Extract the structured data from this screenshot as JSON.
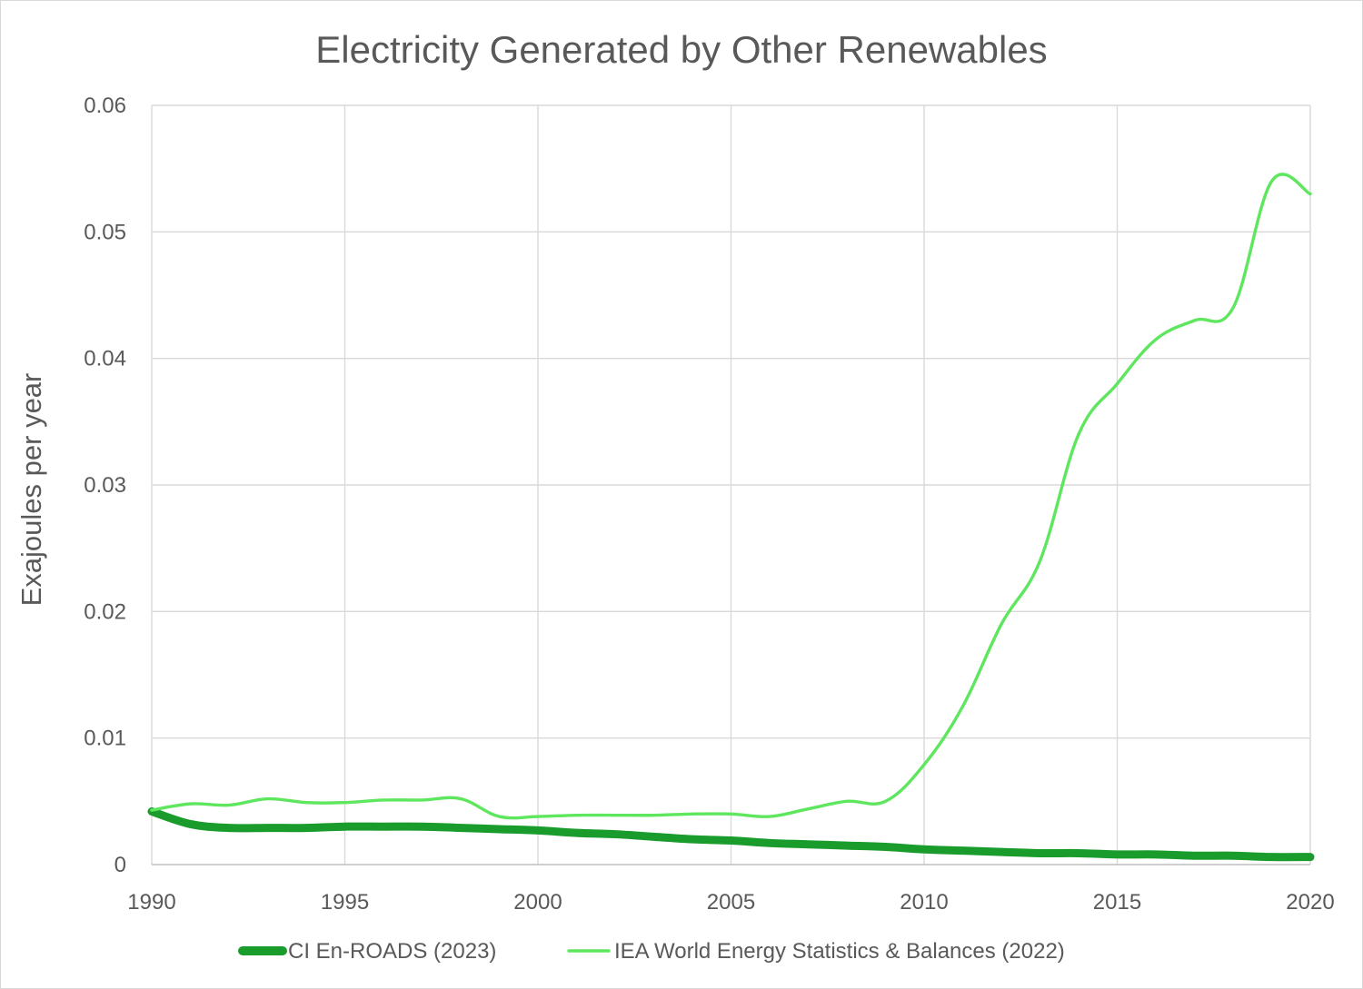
{
  "chart_data": {
    "type": "line",
    "title": "Electricity Generated by Other Renewables",
    "xlabel": "",
    "ylabel": "Exajoules per year",
    "xlim": [
      1990,
      2020
    ],
    "ylim": [
      0,
      0.06
    ],
    "x_ticks": [
      1990,
      1995,
      2000,
      2005,
      2010,
      2015,
      2020
    ],
    "y_ticks": [
      0,
      0.01,
      0.02,
      0.03,
      0.04,
      0.05,
      0.06
    ],
    "x_tick_labels": [
      "1990",
      "1995",
      "2000",
      "2005",
      "2010",
      "2015",
      "2020"
    ],
    "y_tick_labels": [
      "0",
      "0.01",
      "0.02",
      "0.03",
      "0.04",
      "0.05",
      "0.06"
    ],
    "grid": true,
    "legend_position": "bottom",
    "series": [
      {
        "name": "CI En-ROADS (2023)",
        "color": "#1a9c2d",
        "line_width": "thick",
        "x": [
          1990,
          1991,
          1992,
          1993,
          1994,
          1995,
          1996,
          1997,
          1998,
          1999,
          2000,
          2001,
          2002,
          2003,
          2004,
          2005,
          2006,
          2007,
          2008,
          2009,
          2010,
          2011,
          2012,
          2013,
          2014,
          2015,
          2016,
          2017,
          2018,
          2019,
          2020
        ],
        "y": [
          0.0042,
          0.0032,
          0.0029,
          0.0029,
          0.0029,
          0.003,
          0.003,
          0.003,
          0.0029,
          0.0028,
          0.0027,
          0.0025,
          0.0024,
          0.0022,
          0.002,
          0.0019,
          0.0017,
          0.0016,
          0.0015,
          0.0014,
          0.0012,
          0.0011,
          0.001,
          0.0009,
          0.0009,
          0.0008,
          0.0008,
          0.0007,
          0.0007,
          0.0006,
          0.0006
        ]
      },
      {
        "name": "IEA World Energy Statistics & Balances (2022)",
        "color": "#5ee65e",
        "line_width": "thin",
        "x": [
          1990,
          1991,
          1992,
          1993,
          1994,
          1995,
          1996,
          1997,
          1998,
          1999,
          2000,
          2001,
          2002,
          2003,
          2004,
          2005,
          2006,
          2007,
          2008,
          2009,
          2010,
          2011,
          2012,
          2013,
          2014,
          2015,
          2016,
          2017,
          2018,
          2019,
          2020
        ],
        "y": [
          0.0043,
          0.0048,
          0.0047,
          0.0052,
          0.0049,
          0.0049,
          0.0051,
          0.0051,
          0.0052,
          0.0038,
          0.0038,
          0.0039,
          0.0039,
          0.0039,
          0.004,
          0.004,
          0.0038,
          0.0044,
          0.005,
          0.005,
          0.0079,
          0.0125,
          0.019,
          0.024,
          0.034,
          0.038,
          0.0415,
          0.043,
          0.044,
          0.054,
          0.053
        ]
      }
    ]
  }
}
